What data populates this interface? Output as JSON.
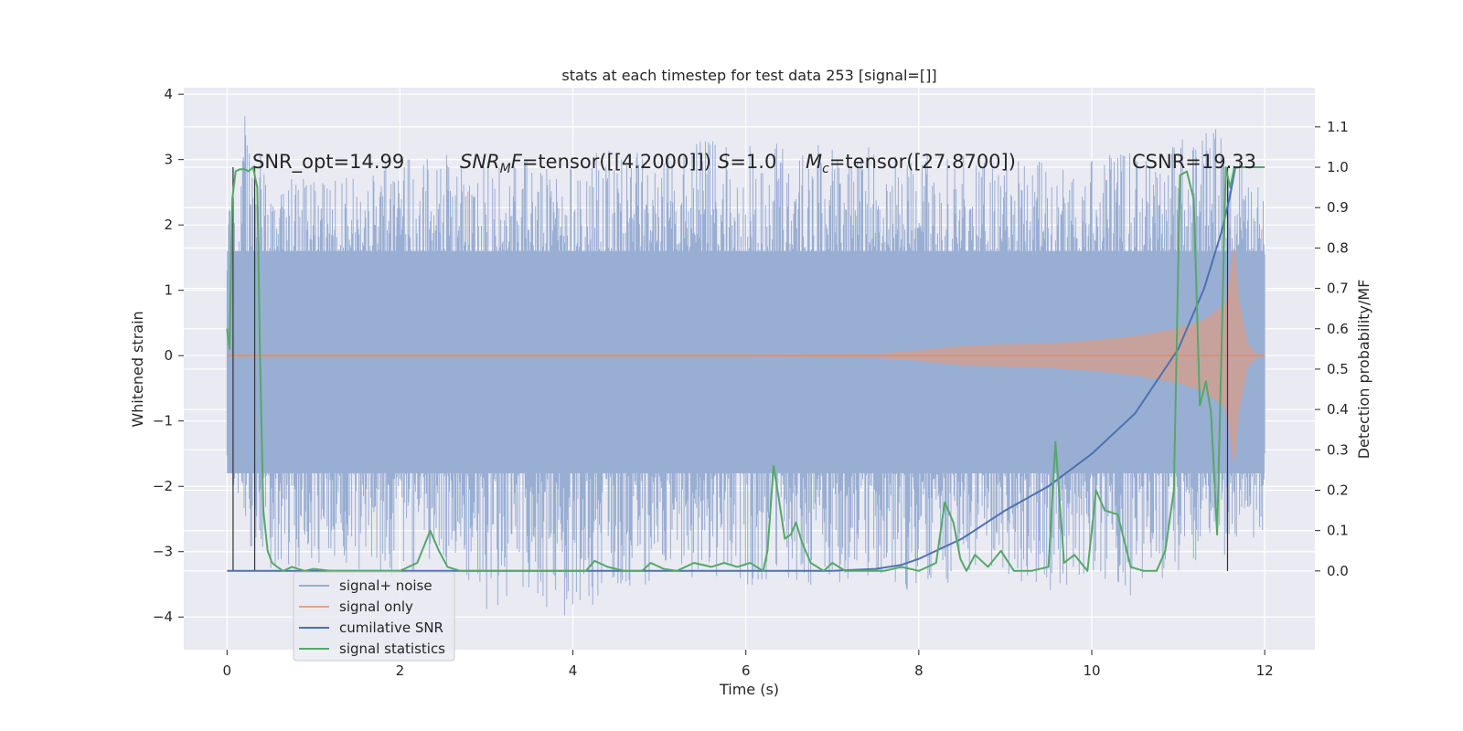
{
  "chart_data": {
    "type": "line",
    "title": "stats at each timestep for test data 253 [signal=[]]",
    "xlabel": "Time (s)",
    "ylabel": "Whitened strain",
    "ylabel_right": "Detection probability/MF",
    "xlim": [
      -0.5,
      12.58
    ],
    "ylim": [
      -4.5,
      4.1
    ],
    "ylim_right": [
      -0.195,
      1.197
    ],
    "xticks": [
      0,
      2,
      4,
      6,
      8,
      10,
      12
    ],
    "xtick_labels": [
      "0",
      "2",
      "4",
      "6",
      "8",
      "10",
      "12"
    ],
    "yticks": [
      4,
      3,
      2,
      1,
      0,
      -1,
      -2,
      -3,
      -4
    ],
    "ytick_labels": [
      "4",
      "3",
      "2",
      "1",
      "0",
      "−1",
      "−2",
      "−3",
      "−4"
    ],
    "yticks_right": [
      1.1,
      1.0,
      0.9,
      0.8,
      0.7,
      0.6,
      0.5,
      0.4,
      0.3,
      0.2,
      0.1,
      0.0
    ],
    "ytick_labels_right": [
      "1.1",
      "1.0",
      "0.9",
      "0.8",
      "0.7",
      "0.6",
      "0.5",
      "0.4",
      "0.3",
      "0.2",
      "0.1",
      "0.0"
    ],
    "grid": true,
    "legend_position": "lower-left",
    "annotations": {
      "snr_opt": "SNR_opt=14.99",
      "snr_mf": "=tensor([[4.2000]])",
      "snr_mf_label": "SNR",
      "snr_mf_sub1": "M",
      "snr_mf_sub2": "F",
      "s_label": "S",
      "s_value": "=1.0",
      "mc_label": "M",
      "mc_sub": "c",
      "mc_value": "=tensor([27.8700])",
      "csnr": "CSNR=19.33"
    },
    "series": [
      {
        "name": "signal+ noise",
        "color": "#4c72b0",
        "axis": "left",
        "style": "noise band",
        "x_range": [
          0,
          12
        ],
        "envelope": [
          [
            0,
            2.2
          ],
          [
            0.2,
            3.7
          ],
          [
            0.5,
            2.7
          ],
          [
            1.0,
            2.8
          ],
          [
            1.5,
            2.8
          ],
          [
            2.0,
            3.0
          ],
          [
            2.5,
            3.1
          ],
          [
            3.0,
            3.0
          ],
          [
            3.5,
            3.0
          ],
          [
            4.0,
            3.1
          ],
          [
            4.5,
            3.2
          ],
          [
            5.0,
            3.1
          ],
          [
            5.5,
            3.3
          ],
          [
            6.0,
            3.2
          ],
          [
            6.5,
            3.3
          ],
          [
            7.0,
            3.2
          ],
          [
            7.5,
            3.2
          ],
          [
            8.0,
            3.1
          ],
          [
            8.5,
            3.1
          ],
          [
            9.0,
            3.0
          ],
          [
            9.5,
            3.0
          ],
          [
            10.0,
            3.1
          ],
          [
            10.5,
            3.1
          ],
          [
            11.0,
            3.3
          ],
          [
            11.4,
            3.55
          ],
          [
            11.7,
            3.2
          ],
          [
            12.0,
            2.4
          ]
        ],
        "lower_envelope": [
          [
            0,
            -1.7
          ],
          [
            0.3,
            -3.1
          ],
          [
            0.7,
            -3.4
          ],
          [
            1.5,
            -3.3
          ],
          [
            2.0,
            -3.4
          ],
          [
            2.5,
            -3.3
          ],
          [
            3.0,
            -3.9
          ],
          [
            3.5,
            -3.7
          ],
          [
            3.9,
            -4.1
          ],
          [
            4.5,
            -3.6
          ],
          [
            5.0,
            -3.5
          ],
          [
            5.5,
            -3.4
          ],
          [
            6.0,
            -3.5
          ],
          [
            6.5,
            -3.6
          ],
          [
            7.0,
            -3.5
          ],
          [
            7.5,
            -3.4
          ],
          [
            8.0,
            -3.7
          ],
          [
            8.5,
            -3.4
          ],
          [
            9.0,
            -3.4
          ],
          [
            9.5,
            -3.6
          ],
          [
            10.0,
            -3.5
          ],
          [
            10.5,
            -3.7
          ],
          [
            11.0,
            -3.3
          ],
          [
            11.5,
            -3.1
          ],
          [
            12.0,
            -2.7
          ]
        ],
        "core_range": [
          -1.8,
          1.6
        ]
      },
      {
        "name": "signal only",
        "color": "#dd8452",
        "axis": "left",
        "style": "chirp envelope",
        "amplitude": [
          [
            0,
            0.02
          ],
          [
            2,
            0.02
          ],
          [
            4,
            0.02
          ],
          [
            6,
            0.02
          ],
          [
            7.5,
            0.03
          ],
          [
            8.0,
            0.08
          ],
          [
            8.5,
            0.15
          ],
          [
            9.0,
            0.17
          ],
          [
            9.5,
            0.19
          ],
          [
            10.0,
            0.23
          ],
          [
            10.5,
            0.3
          ],
          [
            11.0,
            0.42
          ],
          [
            11.3,
            0.55
          ],
          [
            11.55,
            0.8
          ],
          [
            11.65,
            1.75
          ],
          [
            11.7,
            0.9
          ],
          [
            11.8,
            0.2
          ],
          [
            11.9,
            0.03
          ],
          [
            12.0,
            0.02
          ]
        ]
      },
      {
        "name": "cumilative SNR",
        "color": "#4c72b0",
        "axis": "right",
        "x": [
          0,
          7.0,
          7.5,
          7.8,
          8.0,
          8.5,
          9.0,
          9.5,
          10.0,
          10.5,
          11.0,
          11.3,
          11.5,
          11.6,
          11.66
        ],
        "y": [
          0,
          0,
          0.005,
          0.015,
          0.03,
          0.08,
          0.15,
          0.21,
          0.29,
          0.39,
          0.55,
          0.7,
          0.84,
          0.93,
          1.0
        ],
        "tail": [
          [
            11.66,
            1.0
          ],
          [
            12.0,
            1.0
          ]
        ]
      },
      {
        "name": "signal statistics",
        "color": "#55a868",
        "axis": "right",
        "x": [
          0,
          0.03,
          0.06,
          0.1,
          0.15,
          0.2,
          0.25,
          0.3,
          0.35,
          0.38,
          0.42,
          0.47,
          0.52,
          0.58,
          0.65,
          0.75,
          0.9,
          1.0,
          1.2,
          1.5,
          2.0,
          2.2,
          2.35,
          2.45,
          2.55,
          2.7,
          3.0,
          3.3,
          3.8,
          4.15,
          4.25,
          4.4,
          4.6,
          4.8,
          4.9,
          5.05,
          5.2,
          5.4,
          5.6,
          5.75,
          5.9,
          6.05,
          6.2,
          6.25,
          6.32,
          6.38,
          6.45,
          6.52,
          6.58,
          6.65,
          6.75,
          6.9,
          7.0,
          7.15,
          7.3,
          7.6,
          7.8,
          8.0,
          8.2,
          8.3,
          8.4,
          8.48,
          8.55,
          8.65,
          8.8,
          8.95,
          9.1,
          9.3,
          9.5,
          9.58,
          9.68,
          9.8,
          9.95,
          10.05,
          10.15,
          10.3,
          10.45,
          10.6,
          10.75,
          10.85,
          10.95,
          11.02,
          11.1,
          11.18,
          11.25,
          11.32,
          11.38,
          11.45,
          11.5,
          11.55,
          11.6,
          11.65,
          11.7,
          12.0
        ],
        "y": [
          0.6,
          0.55,
          0.92,
          0.99,
          0.995,
          0.995,
          0.99,
          1.0,
          0.95,
          0.55,
          0.15,
          0.05,
          0.02,
          0.01,
          0.0,
          0.01,
          0.0,
          0.005,
          0.0,
          0.0,
          0.0,
          0.02,
          0.1,
          0.05,
          0.01,
          0.0,
          0.0,
          0.0,
          0.0,
          0.0,
          0.025,
          0.01,
          0.0,
          0.0,
          0.02,
          0.005,
          0.0,
          0.02,
          0.01,
          0.02,
          0.01,
          0.02,
          0.0,
          0.05,
          0.26,
          0.18,
          0.08,
          0.09,
          0.12,
          0.07,
          0.02,
          0.0,
          0.02,
          0.0,
          0.0,
          0.0,
          0.01,
          0.0,
          0.02,
          0.17,
          0.12,
          0.03,
          0.0,
          0.04,
          0.01,
          0.05,
          0.0,
          0.0,
          0.01,
          0.32,
          0.02,
          0.04,
          0.0,
          0.2,
          0.15,
          0.14,
          0.01,
          0.0,
          0.0,
          0.05,
          0.2,
          0.98,
          0.99,
          0.92,
          0.41,
          0.47,
          0.39,
          0.09,
          0.55,
          1.0,
          0.95,
          1.0,
          1.0,
          1.0
        ]
      }
    ],
    "vertical_lines": [
      0.07,
      0.32,
      11.57
    ]
  }
}
